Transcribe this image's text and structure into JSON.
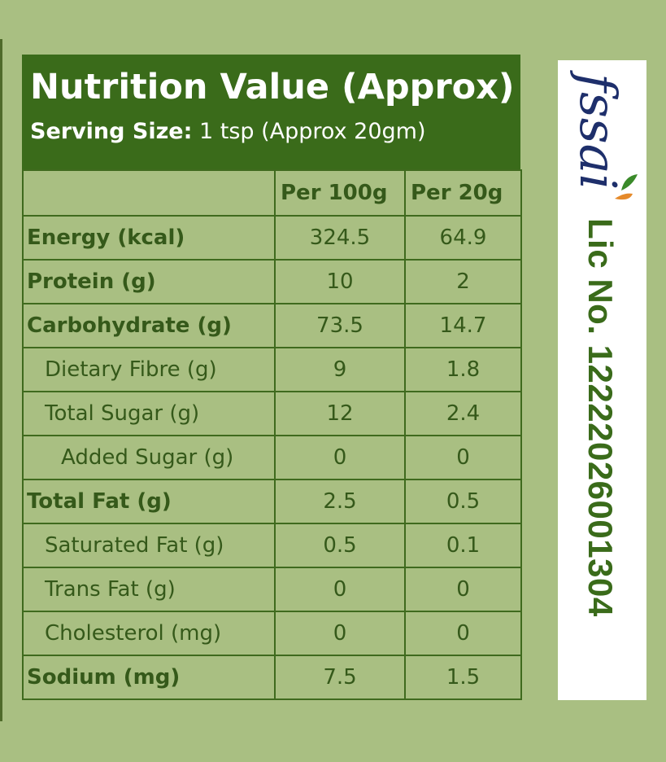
{
  "label": {
    "title": "Nutrition Value (Approx)",
    "serving_label": "Serving Size:",
    "serving_value": " 1 tsp (Approx 20gm)",
    "columns": [
      "Per 100g",
      "Per 20g"
    ],
    "rows": [
      {
        "name": "Energy (kcal)",
        "per100": "324.5",
        "per20": "64.9"
      },
      {
        "name": "Protein (g)",
        "per100": "10",
        "per20": "2"
      },
      {
        "name": "Carbohydrate (g)",
        "per100": "73.5",
        "per20": "14.7"
      },
      {
        "name": "Dietary Fibre (g)",
        "per100": "9",
        "per20": "1.8"
      },
      {
        "name": "Total Sugar (g)",
        "per100": "12",
        "per20": "2.4"
      },
      {
        "name": "Added Sugar (g)",
        "per100": "0",
        "per20": "0"
      },
      {
        "name": "Total Fat (g)",
        "per100": "2.5",
        "per20": "0.5"
      },
      {
        "name": "Saturated Fat (g)",
        "per100": "0.5",
        "per20": "0.1"
      },
      {
        "name": "Trans Fat (g)",
        "per100": "0",
        "per20": "0"
      },
      {
        "name": "Cholesterol (mg)",
        "per100": "0",
        "per20": "0"
      },
      {
        "name": "Sodium (mg)",
        "per100": "7.5",
        "per20": "1.5"
      }
    ]
  },
  "fssai": {
    "logo_text": "fssai",
    "license_text": "Lic No. 12222026001304"
  },
  "colors": {
    "background": "#a9bf82",
    "header_green": "#3a6b1a",
    "text_green": "#35591a",
    "logo_navy": "#1e2f6b",
    "logo_orange": "#e58a2a"
  }
}
